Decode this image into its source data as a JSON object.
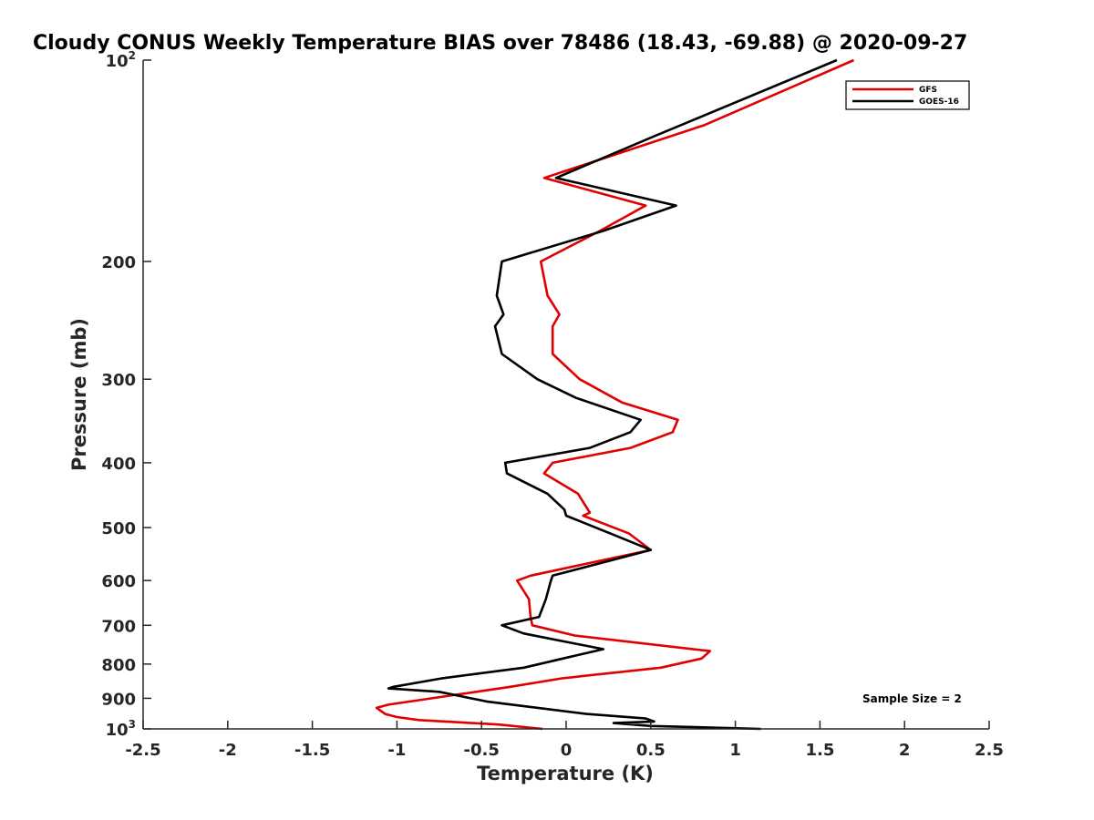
{
  "chart_data": {
    "type": "line",
    "title": "Cloudy CONUS Weekly Temperature BIAS over 78486 (18.43, -69.88) @ 2020-09-27",
    "xlabel": "Temperature (K)",
    "ylabel": "Pressure (mb)",
    "xlim": [
      -2.5,
      2.5
    ],
    "ylim": [
      100,
      1000
    ],
    "y_scale": "log",
    "y_reversed": true,
    "grid": false,
    "legend_position": "top-right",
    "x_ticks": [
      "-2.5",
      "-2",
      "-1.5",
      "-1",
      "-0.5",
      "0",
      "0.5",
      "1",
      "1.5",
      "2",
      "2.5"
    ],
    "y_ticks": [
      {
        "value": 100,
        "base": "10",
        "exp": "2"
      },
      {
        "value": 200,
        "label": "200"
      },
      {
        "value": 300,
        "label": "300"
      },
      {
        "value": 400,
        "label": "400"
      },
      {
        "value": 500,
        "label": "500"
      },
      {
        "value": 600,
        "label": "600"
      },
      {
        "value": 700,
        "label": "700"
      },
      {
        "value": 800,
        "label": "800"
      },
      {
        "value": 900,
        "label": "900"
      },
      {
        "value": 1000,
        "base": "10",
        "exp": "3"
      }
    ],
    "annotation": "Sample Size = 2",
    "series": [
      {
        "name": "GFS",
        "color": "#e00000",
        "points": [
          [
            1.7,
            100
          ],
          [
            0.82,
            125
          ],
          [
            -0.13,
            150
          ],
          [
            0.47,
            165
          ],
          [
            0.2,
            180
          ],
          [
            -0.15,
            200
          ],
          [
            -0.11,
            225
          ],
          [
            -0.04,
            240
          ],
          [
            -0.08,
            250
          ],
          [
            -0.08,
            275
          ],
          [
            0.08,
            300
          ],
          [
            0.33,
            325
          ],
          [
            0.66,
            345
          ],
          [
            0.63,
            360
          ],
          [
            0.38,
            380
          ],
          [
            -0.08,
            400
          ],
          [
            -0.13,
            415
          ],
          [
            0.07,
            445
          ],
          [
            0.14,
            475
          ],
          [
            0.1,
            480
          ],
          [
            0.37,
            510
          ],
          [
            0.5,
            540
          ],
          [
            -0.21,
            590
          ],
          [
            -0.29,
            600
          ],
          [
            -0.22,
            640
          ],
          [
            -0.21,
            680
          ],
          [
            -0.2,
            700
          ],
          [
            0.05,
            725
          ],
          [
            0.85,
            765
          ],
          [
            0.8,
            785
          ],
          [
            0.56,
            810
          ],
          [
            -0.02,
            840
          ],
          [
            -0.33,
            865
          ],
          [
            -1.05,
            920
          ],
          [
            -1.12,
            930
          ],
          [
            -1.07,
            950
          ],
          [
            -1.0,
            960
          ],
          [
            -0.87,
            970
          ],
          [
            -0.4,
            985
          ],
          [
            -0.14,
            1000
          ]
        ]
      },
      {
        "name": "GOES-16",
        "color": "#000000",
        "points": [
          [
            1.6,
            100
          ],
          [
            0.52,
            130
          ],
          [
            -0.06,
            150
          ],
          [
            0.65,
            165
          ],
          [
            0.22,
            180
          ],
          [
            -0.38,
            200
          ],
          [
            -0.41,
            225
          ],
          [
            -0.37,
            240
          ],
          [
            -0.42,
            250
          ],
          [
            -0.38,
            275
          ],
          [
            -0.17,
            300
          ],
          [
            0.06,
            320
          ],
          [
            0.44,
            345
          ],
          [
            0.38,
            360
          ],
          [
            0.14,
            380
          ],
          [
            -0.36,
            400
          ],
          [
            -0.35,
            415
          ],
          [
            -0.11,
            445
          ],
          [
            -0.01,
            470
          ],
          [
            0.0,
            480
          ],
          [
            0.26,
            510
          ],
          [
            0.5,
            540
          ],
          [
            -0.08,
            590
          ],
          [
            -0.09,
            600
          ],
          [
            -0.12,
            640
          ],
          [
            -0.16,
            680
          ],
          [
            -0.38,
            700
          ],
          [
            -0.25,
            720
          ],
          [
            0.22,
            760
          ],
          [
            -0.02,
            785
          ],
          [
            -0.25,
            810
          ],
          [
            -0.73,
            840
          ],
          [
            -1.02,
            865
          ],
          [
            -1.05,
            870
          ],
          [
            -0.75,
            880
          ],
          [
            -0.47,
            910
          ],
          [
            0.12,
            950
          ],
          [
            0.47,
            965
          ],
          [
            0.52,
            975
          ],
          [
            0.28,
            980
          ],
          [
            0.5,
            990
          ],
          [
            1.15,
            1000
          ]
        ]
      }
    ]
  }
}
